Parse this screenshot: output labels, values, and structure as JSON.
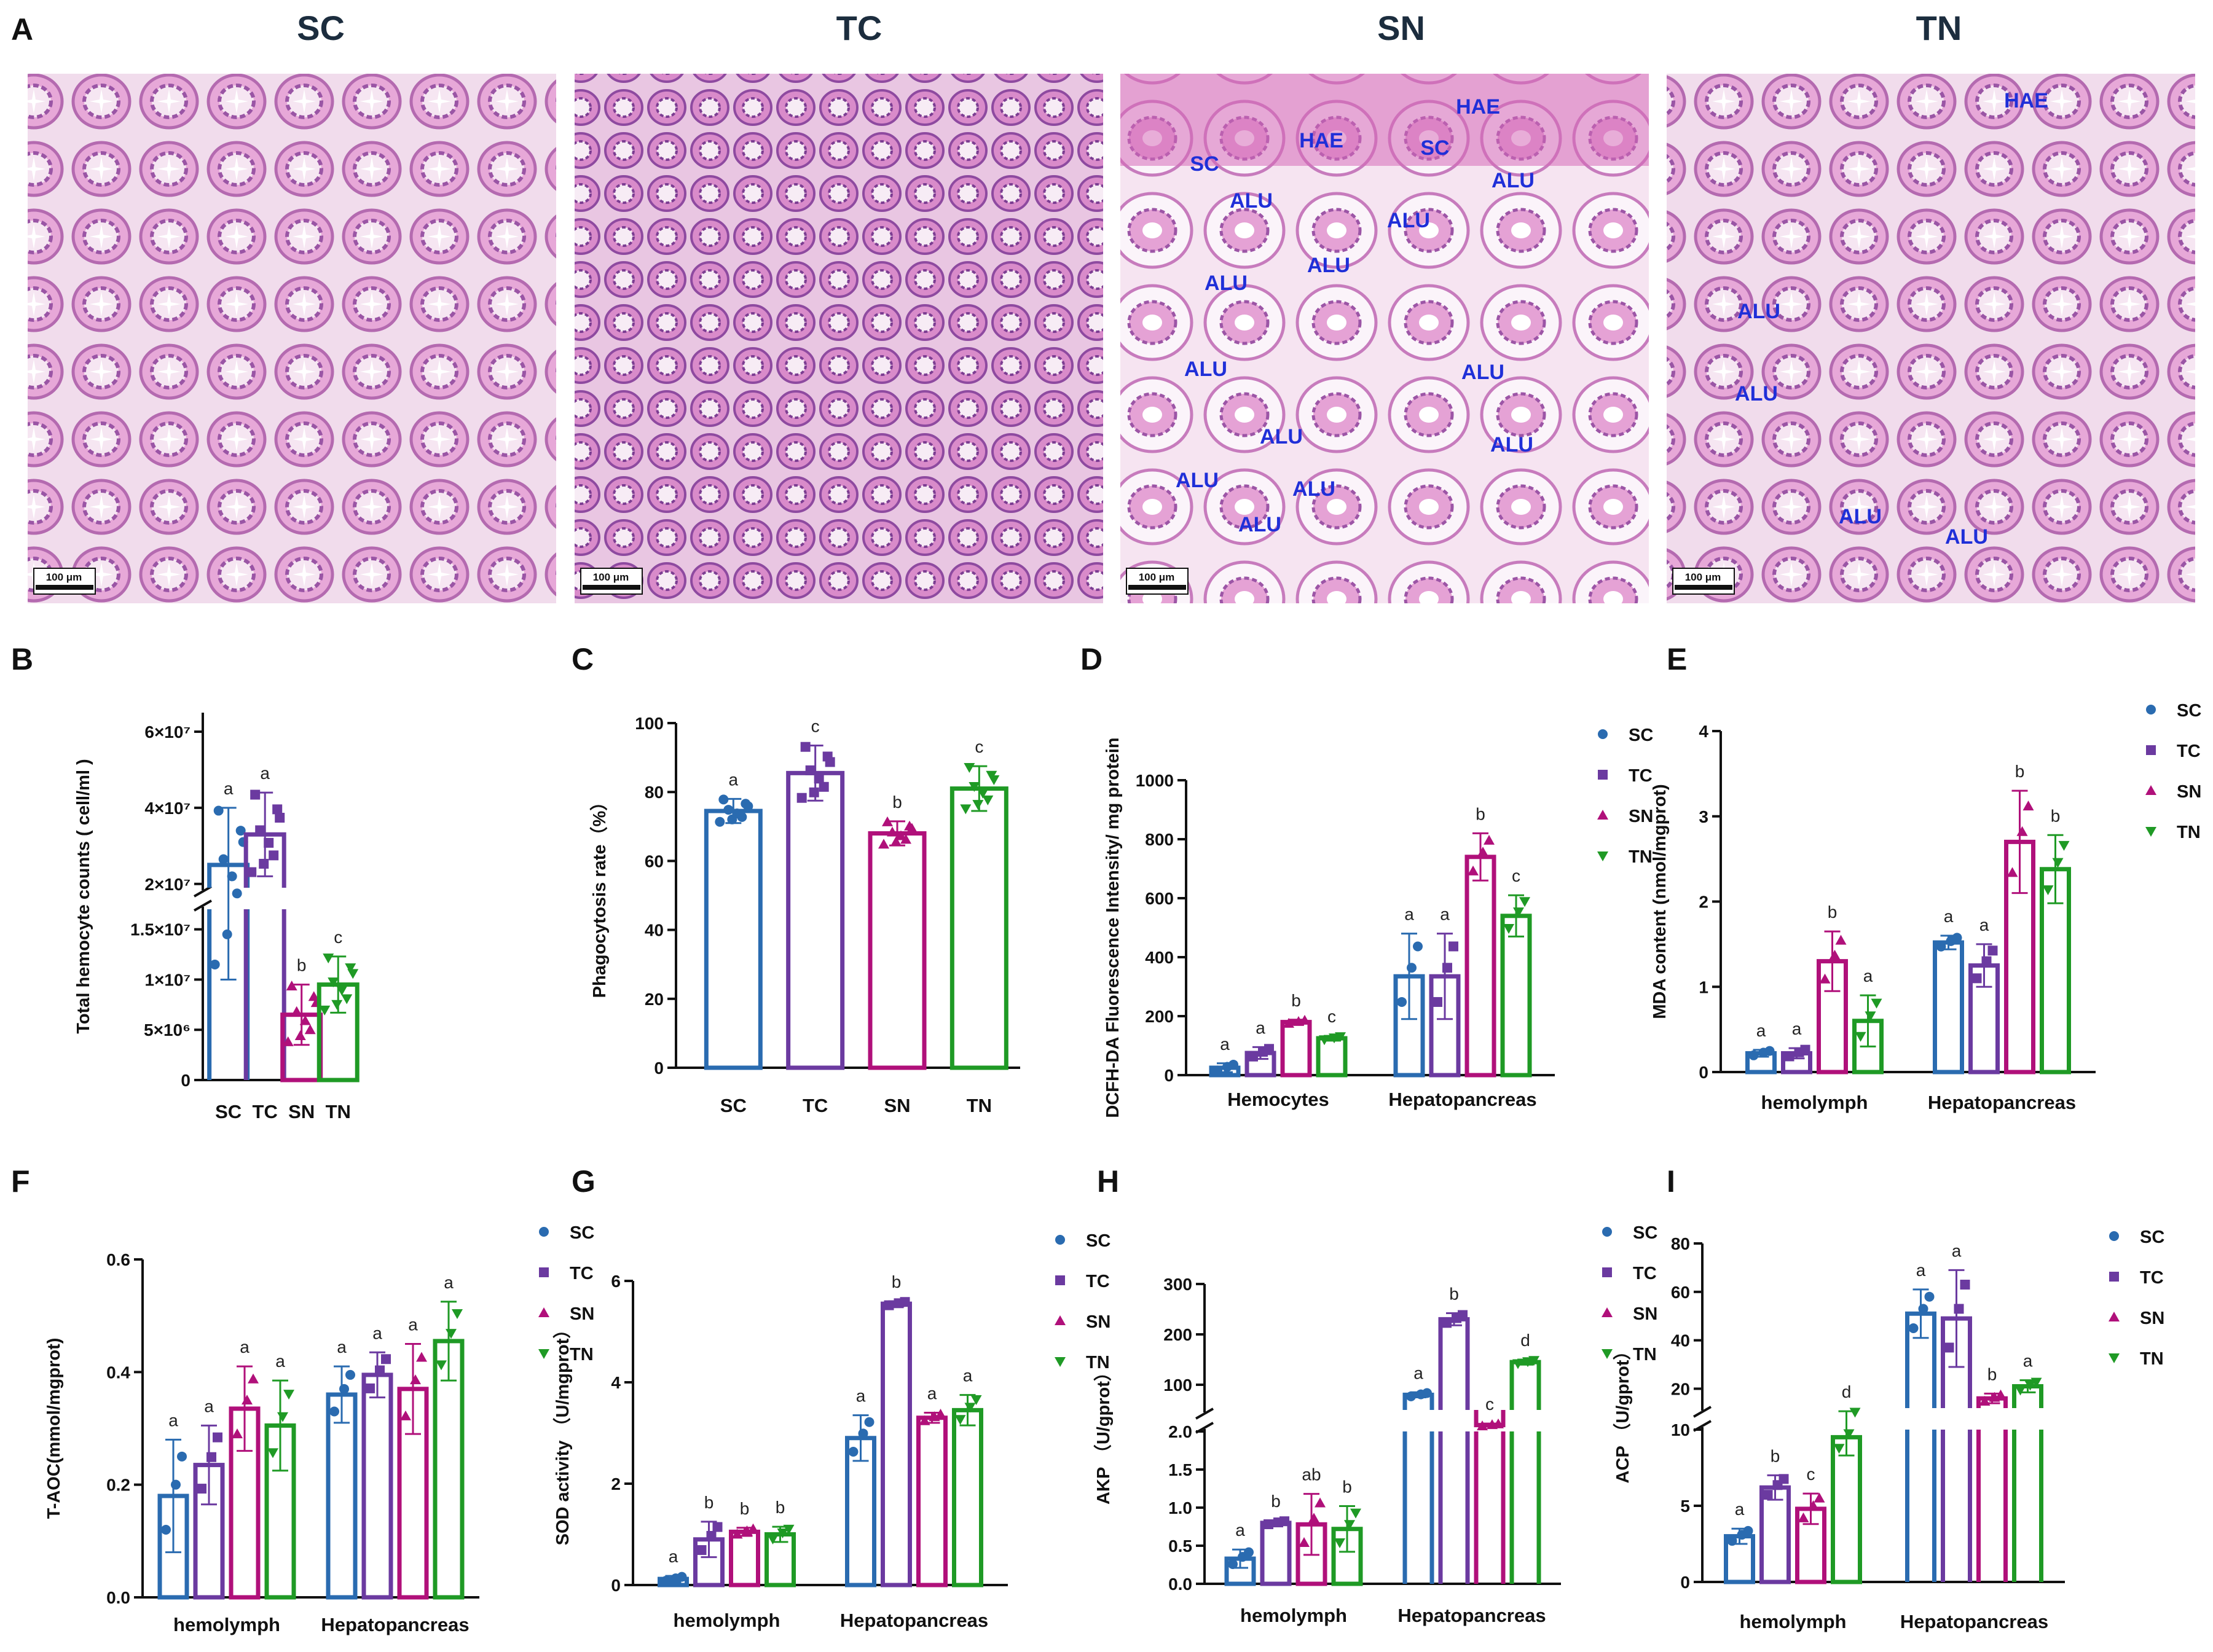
{
  "panelA": {
    "label": "A",
    "scale_label": "100 μm",
    "images": [
      {
        "title": "SC",
        "annotations": []
      },
      {
        "title": "TC",
        "annotations": []
      },
      {
        "title": "SN",
        "annotations": [
          "HAE",
          "HAE",
          "SC",
          "SC",
          "ALU",
          "ALU",
          "ALU",
          "ALU",
          "ALU",
          "ALU",
          "ALU",
          "ALU",
          "ALU",
          "ALU",
          "ALU",
          "ALU"
        ]
      },
      {
        "title": "TN",
        "annotations": [
          "HAE",
          "ALU",
          "ALU",
          "ALU",
          "ALU"
        ]
      }
    ]
  },
  "colors": {
    "SC": "#2a6bb0",
    "TC": "#6b3aa0",
    "SN": "#b0107a",
    "TN": "#1f9a25"
  },
  "legend": [
    "SC",
    "TC",
    "SN",
    "TN"
  ],
  "chart_data": [
    {
      "id": "B",
      "type": "bar",
      "panel_label": "B",
      "ylabel": "Total hemocyte counts ( cell/ml )",
      "categories": [
        "SC",
        "TC",
        "SN",
        "TN"
      ],
      "values": [
        25000000,
        33000000,
        6500000,
        9500000
      ],
      "errors": [
        15000000,
        11000000,
        3000000,
        2800000
      ],
      "letters": [
        "a",
        "a",
        "b",
        "c"
      ],
      "y_break": [
        17000000,
        19000000
      ],
      "ylim": [
        0,
        65000000
      ],
      "yticks_low": [
        "5×10⁶",
        "1×10⁷",
        "1.5×10⁷"
      ],
      "yticks_high": [
        "2×10⁷",
        "4×10⁷",
        "6×10⁷"
      ],
      "ytick_zero": "0"
    },
    {
      "id": "C",
      "type": "bar",
      "panel_label": "C",
      "ylabel": "Phagocytosis rate（%）",
      "categories": [
        "SC",
        "TC",
        "SN",
        "TN"
      ],
      "values": [
        74.5,
        85.5,
        68,
        81
      ],
      "errors": [
        3.5,
        8,
        3.5,
        6.5
      ],
      "letters": [
        "a",
        "c",
        "b",
        "c"
      ],
      "ylim": [
        0,
        100
      ],
      "yticks": [
        "0",
        "20",
        "40",
        "60",
        "80",
        "100"
      ]
    },
    {
      "id": "D",
      "type": "grouped-bar",
      "panel_label": "D",
      "ylabel": "DCFH-DA Fluorescence Intensity/ mg protein",
      "groups": [
        "Hemocytes",
        "Hepatopancreas"
      ],
      "series": [
        {
          "name": "SC",
          "values": [
            25,
            335
          ],
          "errors": [
            15,
            145
          ],
          "letters": [
            "a",
            "a"
          ]
        },
        {
          "name": "TC",
          "values": [
            75,
            335
          ],
          "errors": [
            20,
            145
          ],
          "letters": [
            "a",
            "a"
          ]
        },
        {
          "name": "SN",
          "values": [
            180,
            740
          ],
          "errors": [
            8,
            80
          ],
          "letters": [
            "b",
            "b"
          ]
        },
        {
          "name": "TN",
          "values": [
            125,
            540
          ],
          "errors": [
            8,
            70
          ],
          "letters": [
            "c",
            "c"
          ]
        }
      ],
      "ylim": [
        0,
        1000
      ],
      "yticks": [
        "0",
        "200",
        "400",
        "600",
        "800",
        "1000"
      ]
    },
    {
      "id": "E",
      "type": "grouped-bar",
      "panel_label": "E",
      "ylabel": "MDA content (nmol/mgprot)",
      "groups": [
        "hemolymph",
        "Hepatopancreas"
      ],
      "series": [
        {
          "name": "SC",
          "values": [
            0.22,
            1.52
          ],
          "errors": [
            0.04,
            0.08
          ],
          "letters": [
            "a",
            "a"
          ]
        },
        {
          "name": "TC",
          "values": [
            0.22,
            1.25
          ],
          "errors": [
            0.06,
            0.25
          ],
          "letters": [
            "a",
            "a"
          ]
        },
        {
          "name": "SN",
          "values": [
            1.3,
            2.7
          ],
          "errors": [
            0.35,
            0.6
          ],
          "letters": [
            "b",
            "b"
          ]
        },
        {
          "name": "TN",
          "values": [
            0.6,
            2.38
          ],
          "errors": [
            0.3,
            0.4
          ],
          "letters": [
            "a",
            "b"
          ]
        }
      ],
      "ylim": [
        0,
        4
      ],
      "yticks": [
        "0",
        "1",
        "2",
        "3",
        "4"
      ]
    },
    {
      "id": "F",
      "type": "grouped-bar",
      "panel_label": "F",
      "ylabel": "T-AOC(mmol/mgprot)",
      "groups": [
        "hemolymph",
        "Hepatopancreas"
      ],
      "series": [
        {
          "name": "SC",
          "values": [
            0.18,
            0.36
          ],
          "errors": [
            0.1,
            0.05
          ],
          "letters": [
            "a",
            "a"
          ]
        },
        {
          "name": "TC",
          "values": [
            0.235,
            0.395
          ],
          "errors": [
            0.07,
            0.04
          ],
          "letters": [
            "a",
            "a"
          ]
        },
        {
          "name": "SN",
          "values": [
            0.335,
            0.37
          ],
          "errors": [
            0.075,
            0.08
          ],
          "letters": [
            "a",
            "a"
          ]
        },
        {
          "name": "TN",
          "values": [
            0.305,
            0.455
          ],
          "errors": [
            0.08,
            0.07
          ],
          "letters": [
            "a",
            "a"
          ]
        }
      ],
      "ylim": [
        0,
        0.6
      ],
      "yticks": [
        "0.0",
        "0.2",
        "0.4",
        "0.6"
      ]
    },
    {
      "id": "G",
      "type": "grouped-bar",
      "panel_label": "G",
      "ylabel": "SOD activity （U/mgprot）",
      "groups": [
        "hemolymph",
        "Hepatopancreas"
      ],
      "series": [
        {
          "name": "SC",
          "values": [
            0.12,
            2.9
          ],
          "errors": [
            0.06,
            0.45
          ],
          "letters": [
            "a",
            "a"
          ]
        },
        {
          "name": "TC",
          "values": [
            0.9,
            5.55
          ],
          "errors": [
            0.35,
            0.05
          ],
          "letters": [
            "b",
            "b"
          ]
        },
        {
          "name": "SN",
          "values": [
            1.05,
            3.3
          ],
          "errors": [
            0.08,
            0.1
          ],
          "letters": [
            "b",
            "a"
          ]
        },
        {
          "name": "TN",
          "values": [
            1.0,
            3.45
          ],
          "errors": [
            0.15,
            0.3
          ],
          "letters": [
            "b",
            "a"
          ]
        }
      ],
      "ylim": [
        0,
        6
      ],
      "yticks": [
        "0",
        "2",
        "4",
        "6"
      ]
    },
    {
      "id": "H",
      "type": "grouped-bar",
      "panel_label": "H",
      "ylabel": "AKP （U/gprot）",
      "groups": [
        "hemolymph",
        "Hepatopancreas"
      ],
      "series": [
        {
          "name": "SC",
          "values": [
            0.33,
            80
          ],
          "errors": [
            0.12,
            5
          ],
          "letters": [
            "a",
            "a"
          ]
        },
        {
          "name": "TC",
          "values": [
            0.8,
            230
          ],
          "errors": [
            0.03,
            12
          ],
          "letters": [
            "b",
            "b"
          ]
        },
        {
          "name": "SN",
          "values": [
            0.78,
            20
          ],
          "errors": [
            0.4,
            3
          ],
          "letters": [
            "ab",
            "c"
          ]
        },
        {
          "name": "TN",
          "values": [
            0.72,
            145
          ],
          "errors": [
            0.3,
            5
          ],
          "letters": [
            "b",
            "d"
          ]
        }
      ],
      "y_break": [
        2.0,
        50
      ],
      "ylim": [
        0,
        300
      ],
      "yticks_low": [
        "0.0",
        "0.5",
        "1.0",
        "1.5",
        "2.0"
      ],
      "yticks_high": [
        "100",
        "200",
        "300"
      ]
    },
    {
      "id": "I",
      "type": "grouped-bar",
      "panel_label": "I",
      "ylabel": "ACP （U/gprot）",
      "groups": [
        "hemolymph",
        "Hepatopancreas"
      ],
      "series": [
        {
          "name": "SC",
          "values": [
            3,
            51
          ],
          "errors": [
            0.5,
            10
          ],
          "letters": [
            "a",
            "a"
          ]
        },
        {
          "name": "TC",
          "values": [
            6.2,
            49
          ],
          "errors": [
            0.8,
            20
          ],
          "letters": [
            "b",
            "a"
          ]
        },
        {
          "name": "SN",
          "values": [
            4.8,
            16
          ],
          "errors": [
            1.0,
            2
          ],
          "letters": [
            "c",
            "b"
          ]
        },
        {
          "name": "TN",
          "values": [
            9.5,
            21
          ],
          "errors": [
            1.2,
            2.5
          ],
          "letters": [
            "d",
            "a"
          ]
        }
      ],
      "y_break": [
        10,
        12
      ],
      "ylim": [
        0,
        80
      ],
      "yticks_low": [
        "0",
        "5",
        "10"
      ],
      "yticks_high": [
        "20",
        "40",
        "60",
        "80"
      ]
    }
  ]
}
